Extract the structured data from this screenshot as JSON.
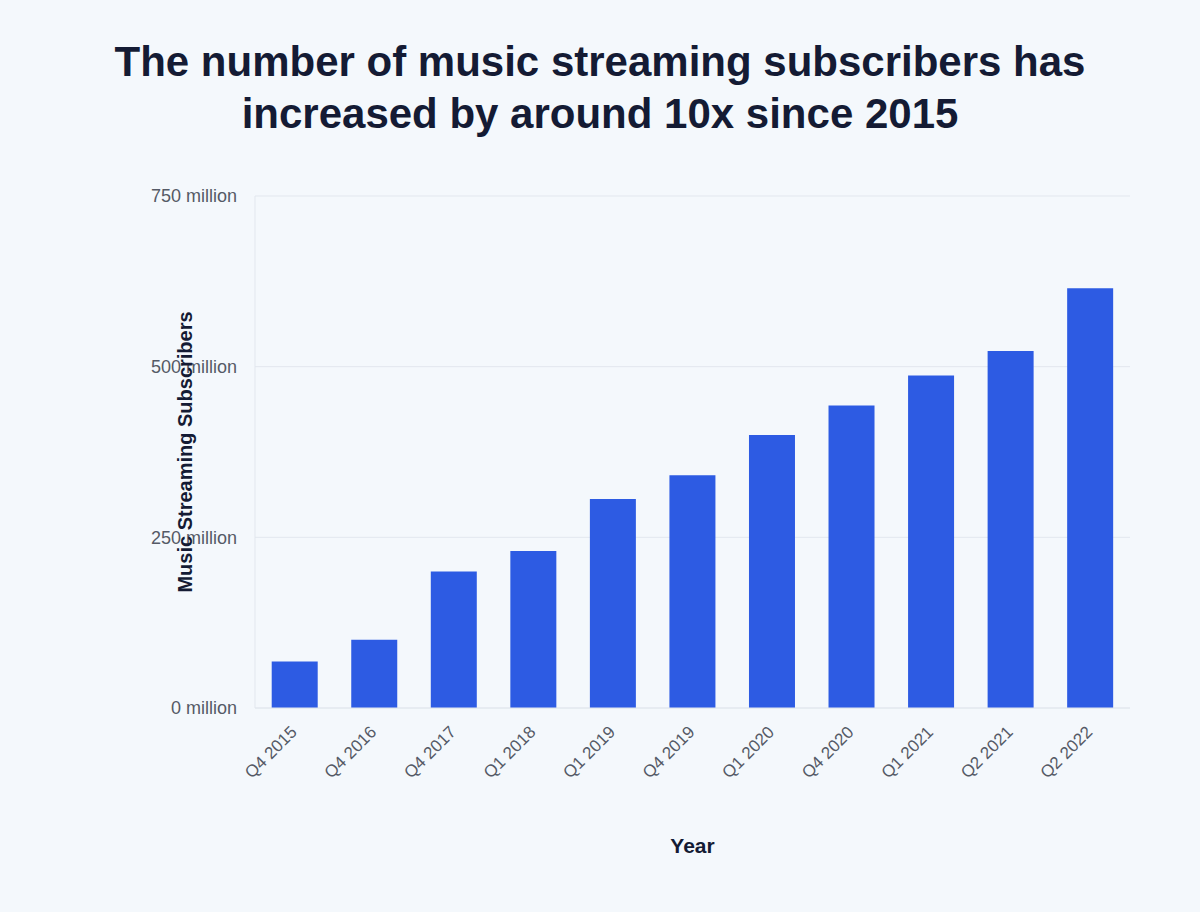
{
  "chart_data": {
    "type": "bar",
    "title": "The number of music streaming subscribers has increased by around 10x since 2015",
    "x_label": "Year",
    "y_label": "Music Streaming Subscribers",
    "categories": [
      "Q4 2015",
      "Q4 2016",
      "Q4 2017",
      "Q1 2018",
      "Q1 2019",
      "Q4 2019",
      "Q1 2020",
      "Q4 2020",
      "Q1 2021",
      "Q2 2021",
      "Q2 2022"
    ],
    "values": [
      68,
      100,
      200,
      230,
      306,
      341,
      400,
      443,
      487,
      523,
      615
    ],
    "color": "#2d5be3",
    "ylim": [
      0,
      750
    ],
    "yticks": [
      {
        "value": 0,
        "label": "0 million"
      },
      {
        "value": 250,
        "label": "250 million"
      },
      {
        "value": 500,
        "label": "500 million"
      },
      {
        "value": 750,
        "label": "750 million"
      }
    ],
    "grid": true
  }
}
